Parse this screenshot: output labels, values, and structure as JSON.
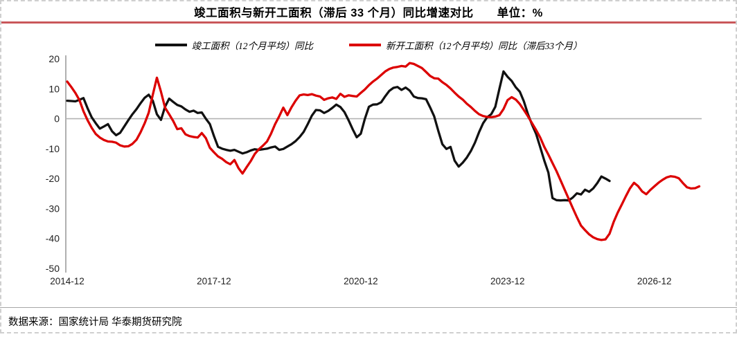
{
  "header": {
    "unit_label": "单位：%"
  },
  "footer": {
    "source_note": "数据来源：国家统计局 华泰期货研究院"
  },
  "chart_data": {
    "type": "line",
    "title": "竣工面积与新开工面积（滞后 33 个月）同比增速对比",
    "xlabel": "",
    "ylabel": "",
    "ylim": [
      -50,
      20
    ],
    "y_ticks": [
      20,
      10,
      0,
      -10,
      -20,
      -30,
      -40,
      -50
    ],
    "x_start": "2014-12",
    "x_frequency": "monthly",
    "x_tick_labels": [
      "2014-12",
      "2017-12",
      "2020-12",
      "2023-12",
      "2026-12"
    ],
    "x_tick_interval_months": 36,
    "grid": "horizontal line at zero only",
    "legend_position": "top-center",
    "colors": {
      "completed": "#111111",
      "new_starts": "#dc0000",
      "axis": "#9c9c9c",
      "zero_line": "#b3b3b3",
      "title_rule": "#c9575a"
    },
    "series": [
      {
        "id": "completed-area",
        "name": "竣工面积（12个月平均）同比",
        "color": "#111111",
        "values": [
          6.0,
          5.9,
          5.8,
          6.3,
          6.9,
          3.5,
          0.5,
          -1.5,
          -3.3,
          -2.6,
          -1.8,
          -4.2,
          -5.5,
          -4.7,
          -2.6,
          -0.5,
          1.5,
          3.2,
          5.2,
          7.0,
          8.0,
          6.0,
          1.5,
          -0.4,
          4.0,
          6.7,
          5.6,
          4.6,
          4.1,
          3.1,
          2.3,
          2.7,
          1.9,
          2.1,
          0.0,
          -1.8,
          -5.8,
          -9.4,
          -10.0,
          -10.4,
          -10.7,
          -10.4,
          -11.0,
          -11.6,
          -11.2,
          -10.6,
          -10.2,
          -10.4,
          -10.2,
          -10.0,
          -9.6,
          -9.3,
          -10.4,
          -10.1,
          -9.3,
          -8.5,
          -7.5,
          -6.1,
          -4.4,
          -1.8,
          1.0,
          2.9,
          2.8,
          1.9,
          2.6,
          3.6,
          4.7,
          3.9,
          2.2,
          -0.5,
          -3.5,
          -6.2,
          -5.0,
          0.0,
          4.0,
          4.7,
          4.8,
          5.5,
          7.5,
          9.3,
          10.3,
          10.6,
          9.6,
          10.4,
          9.4,
          7.4,
          6.9,
          6.8,
          6.5,
          3.8,
          0.8,
          -4.0,
          -8.5,
          -10.1,
          -9.4,
          -14.0,
          -16.0,
          -14.7,
          -13.0,
          -10.8,
          -8.0,
          -4.5,
          -1.5,
          0.5,
          1.5,
          4.0,
          10.0,
          15.8,
          14.0,
          12.6,
          10.5,
          9.0,
          5.8,
          1.5,
          -2.0,
          -5.1,
          -9.5,
          -14.0,
          -18.0,
          -26.5,
          -27.2,
          -27.3,
          -27.2,
          -27.3,
          -26.3,
          -24.9,
          -25.3,
          -23.7,
          -24.4,
          -23.3,
          -21.5,
          -19.3,
          -20.0,
          -20.8
        ]
      },
      {
        "id": "new-starts-area",
        "name": "新开工面积（12个月平均）同比（滞后33个月）",
        "color": "#dc0000",
        "lag_months": 33,
        "values": [
          12.4,
          10.6,
          8.6,
          6.2,
          2.5,
          -0.5,
          -3.0,
          -5.1,
          -6.3,
          -7.1,
          -7.6,
          -7.7,
          -8.0,
          -8.9,
          -9.3,
          -9.2,
          -8.4,
          -7.0,
          -4.5,
          -1.5,
          2.0,
          8.0,
          13.7,
          9.0,
          3.7,
          1.5,
          -0.8,
          -3.5,
          -3.2,
          -5.2,
          -5.8,
          -6.1,
          -6.3,
          -4.8,
          -6.5,
          -9.7,
          -11.2,
          -12.6,
          -13.4,
          -14.5,
          -15.2,
          -13.8,
          -16.5,
          -18.3,
          -16.2,
          -14.2,
          -11.8,
          -10.2,
          -9.0,
          -7.6,
          -5.0,
          -1.8,
          0.8,
          3.7,
          1.2,
          3.8,
          6.0,
          7.8,
          8.1,
          7.9,
          8.2,
          7.7,
          7.4,
          6.3,
          6.8,
          7.1,
          6.6,
          8.3,
          7.3,
          7.8,
          7.6,
          7.4,
          8.6,
          9.8,
          11.2,
          12.4,
          13.4,
          14.6,
          15.8,
          16.6,
          17.1,
          17.3,
          17.6,
          17.4,
          18.6,
          18.3,
          17.6,
          16.9,
          15.6,
          14.3,
          13.5,
          13.4,
          12.2,
          11.3,
          10.1,
          8.7,
          7.4,
          6.4,
          5.0,
          3.9,
          2.6,
          1.5,
          0.9,
          0.6,
          0.5,
          0.7,
          1.2,
          3.2,
          6.2,
          7.2,
          6.4,
          4.9,
          2.9,
          0.8,
          -1.5,
          -3.8,
          -6.3,
          -9.4,
          -12.0,
          -14.8,
          -17.5,
          -20.6,
          -23.7,
          -26.8,
          -29.9,
          -32.9,
          -35.7,
          -37.2,
          -38.6,
          -39.6,
          -40.2,
          -40.5,
          -40.3,
          -38.4,
          -34.5,
          -31.4,
          -28.7,
          -25.9,
          -23.3,
          -21.4,
          -22.5,
          -24.3,
          -25.2,
          -23.8,
          -22.6,
          -21.4,
          -20.4,
          -19.6,
          -19.2,
          -19.4,
          -19.9,
          -21.5,
          -22.9,
          -23.3,
          -23.2,
          -22.6
        ]
      }
    ]
  }
}
